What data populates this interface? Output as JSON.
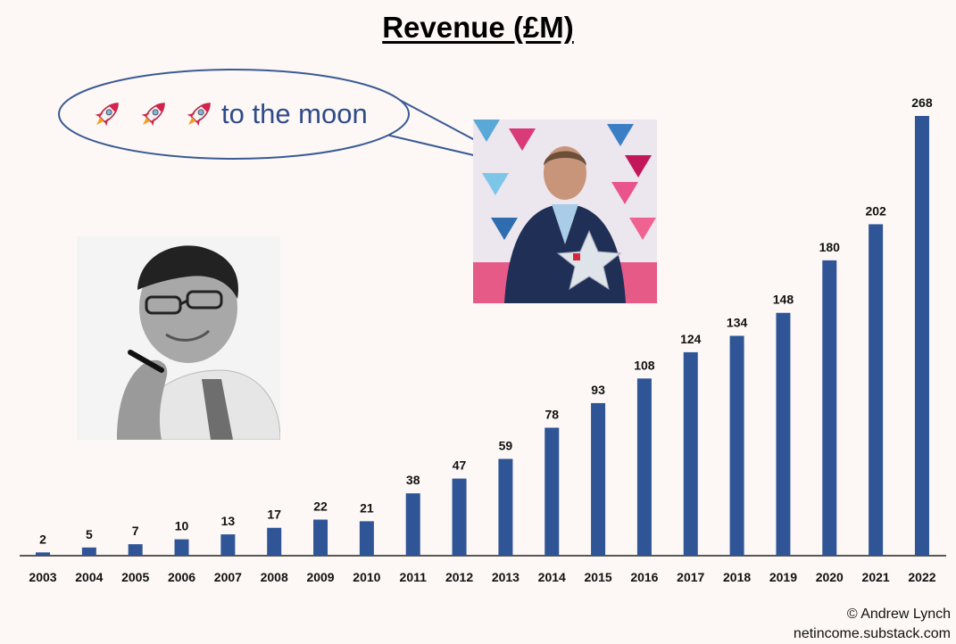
{
  "title": "Revenue (£M)",
  "bubble": {
    "text": "to the moon",
    "icons": [
      "rocket-icon",
      "rocket-icon",
      "rocket-icon"
    ]
  },
  "photos": [
    "person-photo-bw",
    "person-photo-award"
  ],
  "credit": {
    "line1": "© Andrew Lynch",
    "line2": "netincome.substack.com"
  },
  "colors": {
    "bar": "#2f5597",
    "bubble_text": "#2f4b8a",
    "background": "#fdf8f5"
  },
  "chart_data": {
    "type": "bar",
    "title": "Revenue (£M)",
    "categories": [
      "2003",
      "2004",
      "2005",
      "2006",
      "2007",
      "2008",
      "2009",
      "2010",
      "2011",
      "2012",
      "2013",
      "2014",
      "2015",
      "2016",
      "2017",
      "2018",
      "2019",
      "2020",
      "2021",
      "2022"
    ],
    "values": [
      2,
      5,
      7,
      10,
      13,
      17,
      22,
      21,
      38,
      47,
      59,
      78,
      93,
      108,
      124,
      134,
      148,
      180,
      202,
      268
    ],
    "data_labels": true,
    "grid": false,
    "ylim": [
      0,
      268
    ]
  }
}
